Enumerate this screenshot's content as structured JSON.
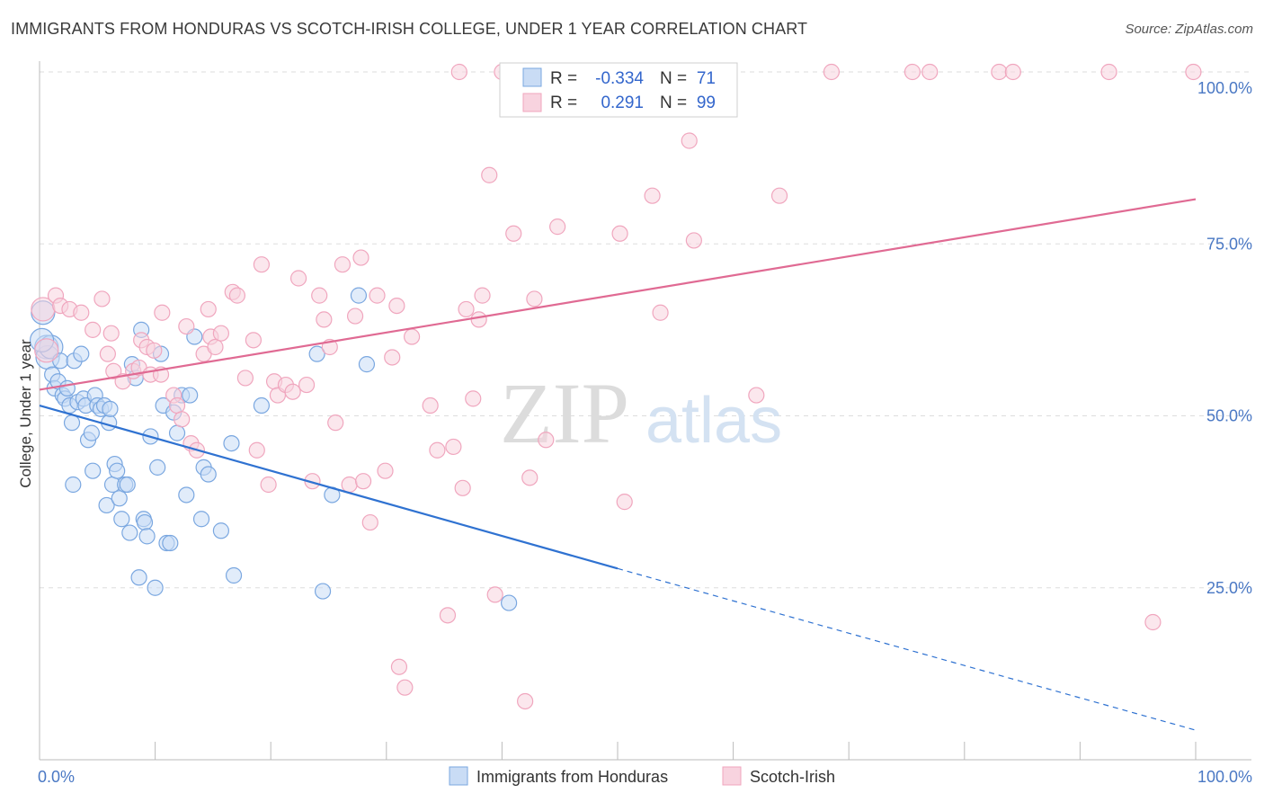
{
  "chart_data": {
    "type": "scatter",
    "title": "IMMIGRANTS FROM HONDURAS VS SCOTCH-IRISH COLLEGE, UNDER 1 YEAR CORRELATION CHART",
    "source": "Source: ZipAtlas.com",
    "xlabel": "",
    "ylabel": "College, Under 1 year",
    "xlim": [
      0,
      100
    ],
    "ylim": [
      0,
      100
    ],
    "x_tick_labels": [
      "0.0%",
      "100.0%"
    ],
    "y_ticks": [
      {
        "value": 25,
        "label": "25.0%"
      },
      {
        "value": 50,
        "label": "50.0%"
      },
      {
        "value": 75,
        "label": "75.0%"
      },
      {
        "value": 100,
        "label": "100.0%"
      }
    ],
    "watermark": {
      "zip": "ZIP",
      "atlas": "atlas"
    },
    "legend": {
      "r_label": "R =",
      "n_label": "N =",
      "entries": [
        {
          "series": "Immigrants from Honduras",
          "r": "-0.334",
          "n": "71"
        },
        {
          "series": "Scotch-Irish",
          "r": "0.291",
          "n": "99"
        }
      ]
    },
    "series": [
      {
        "name": "Immigrants from Honduras",
        "color": "#7aa7e0",
        "fill": "#c9dcf5",
        "line_color": "#2f72d1",
        "trend": {
          "x0": 0,
          "y0": 51.5,
          "x1": 50,
          "y1": 27.8,
          "dash_to_x": 100,
          "dash_to_y": 4.3
        },
        "points": [
          [
            0.3,
            65
          ],
          [
            0.6,
            60
          ],
          [
            0.7,
            58.5
          ],
          [
            1.0,
            60
          ],
          [
            1.1,
            56
          ],
          [
            1.3,
            54
          ],
          [
            1.6,
            55
          ],
          [
            1.8,
            58
          ],
          [
            2.0,
            53
          ],
          [
            2.2,
            52.5
          ],
          [
            2.4,
            54
          ],
          [
            2.6,
            51.5
          ],
          [
            2.8,
            49
          ],
          [
            3.0,
            58
          ],
          [
            3.3,
            52
          ],
          [
            3.6,
            59
          ],
          [
            3.8,
            52.5
          ],
          [
            4.0,
            51.5
          ],
          [
            4.2,
            46.5
          ],
          [
            4.5,
            47.5
          ],
          [
            4.6,
            42
          ],
          [
            4.8,
            53
          ],
          [
            5.0,
            51.5
          ],
          [
            5.3,
            51
          ],
          [
            5.6,
            51.5
          ],
          [
            5.8,
            37
          ],
          [
            6.0,
            49
          ],
          [
            6.1,
            51
          ],
          [
            6.3,
            40
          ],
          [
            6.5,
            43
          ],
          [
            6.7,
            42
          ],
          [
            6.9,
            38
          ],
          [
            7.1,
            35
          ],
          [
            7.4,
            40
          ],
          [
            7.6,
            40
          ],
          [
            7.8,
            33
          ],
          [
            8.0,
            57.5
          ],
          [
            8.3,
            55.5
          ],
          [
            8.6,
            26.5
          ],
          [
            8.8,
            62.5
          ],
          [
            9.0,
            35
          ],
          [
            9.1,
            34.5
          ],
          [
            9.3,
            32.5
          ],
          [
            9.6,
            47
          ],
          [
            10.0,
            25
          ],
          [
            10.2,
            42.5
          ],
          [
            10.5,
            59
          ],
          [
            10.7,
            51.5
          ],
          [
            11.0,
            31.5
          ],
          [
            11.3,
            31.5
          ],
          [
            11.6,
            50.5
          ],
          [
            11.9,
            47.5
          ],
          [
            12.3,
            53
          ],
          [
            12.7,
            38.5
          ],
          [
            13.0,
            53
          ],
          [
            13.4,
            61.5
          ],
          [
            14.0,
            35
          ],
          [
            14.2,
            42.5
          ],
          [
            14.6,
            41.5
          ],
          [
            15.7,
            33.3
          ],
          [
            16.6,
            46
          ],
          [
            16.8,
            26.8
          ],
          [
            19.2,
            51.5
          ],
          [
            24.0,
            59
          ],
          [
            24.5,
            24.5
          ],
          [
            25.3,
            38.5
          ],
          [
            27.6,
            67.5
          ],
          [
            28.3,
            57.5
          ],
          [
            40.6,
            22.8
          ],
          [
            0.2,
            61
          ],
          [
            2.9,
            40
          ]
        ]
      },
      {
        "name": "Scotch-Irish",
        "color": "#f0a6be",
        "fill": "#f8d3df",
        "line_color": "#e06a93",
        "trend": {
          "x0": 0,
          "y0": 53.8,
          "x1": 100,
          "y1": 81.5
        },
        "points": [
          [
            0.3,
            65.5
          ],
          [
            0.6,
            59.5
          ],
          [
            1.4,
            67.5
          ],
          [
            1.8,
            66
          ],
          [
            2.6,
            65.5
          ],
          [
            3.6,
            65
          ],
          [
            4.6,
            62.5
          ],
          [
            5.4,
            67
          ],
          [
            5.9,
            59
          ],
          [
            6.2,
            62
          ],
          [
            6.4,
            56.5
          ],
          [
            7.2,
            55
          ],
          [
            8.1,
            56.5
          ],
          [
            8.6,
            57
          ],
          [
            8.8,
            61
          ],
          [
            9.3,
            60
          ],
          [
            9.6,
            56
          ],
          [
            9.9,
            59.5
          ],
          [
            10.5,
            56
          ],
          [
            10.6,
            65
          ],
          [
            11.6,
            53
          ],
          [
            11.9,
            51.5
          ],
          [
            12.3,
            49.5
          ],
          [
            12.7,
            63
          ],
          [
            13.1,
            46
          ],
          [
            13.6,
            45
          ],
          [
            14.2,
            59
          ],
          [
            14.6,
            65.5
          ],
          [
            14.8,
            61.5
          ],
          [
            15.2,
            60
          ],
          [
            15.7,
            62
          ],
          [
            16.7,
            68
          ],
          [
            17.1,
            67.5
          ],
          [
            17.8,
            55.5
          ],
          [
            18.5,
            61
          ],
          [
            18.8,
            45
          ],
          [
            19.2,
            72
          ],
          [
            19.8,
            40
          ],
          [
            20.3,
            55
          ],
          [
            20.6,
            53
          ],
          [
            21.3,
            54.5
          ],
          [
            21.9,
            53.5
          ],
          [
            22.4,
            70
          ],
          [
            23.1,
            54.5
          ],
          [
            23.6,
            40.5
          ],
          [
            24.2,
            67.5
          ],
          [
            24.6,
            64
          ],
          [
            25.1,
            60
          ],
          [
            25.6,
            49
          ],
          [
            26.2,
            72
          ],
          [
            26.8,
            40
          ],
          [
            27.3,
            64.5
          ],
          [
            27.8,
            73
          ],
          [
            28.0,
            40.5
          ],
          [
            28.6,
            34.5
          ],
          [
            29.2,
            67.5
          ],
          [
            29.9,
            42
          ],
          [
            30.5,
            58.5
          ],
          [
            30.9,
            66
          ],
          [
            31.1,
            13.5
          ],
          [
            31.6,
            10.5
          ],
          [
            32.2,
            61.5
          ],
          [
            33.8,
            51.5
          ],
          [
            34.4,
            45
          ],
          [
            35.3,
            21
          ],
          [
            35.8,
            45.5
          ],
          [
            36.3,
            100
          ],
          [
            36.6,
            39.5
          ],
          [
            36.9,
            65.5
          ],
          [
            37.5,
            52.5
          ],
          [
            38.0,
            64
          ],
          [
            38.3,
            67.5
          ],
          [
            38.9,
            85
          ],
          [
            39.4,
            24
          ],
          [
            40.0,
            100
          ],
          [
            41.0,
            76.5
          ],
          [
            41.5,
            100
          ],
          [
            42.0,
            8.5
          ],
          [
            42.4,
            41
          ],
          [
            42.8,
            67
          ],
          [
            43.8,
            46.5
          ],
          [
            44.8,
            77.5
          ],
          [
            50.2,
            76.5
          ],
          [
            50.6,
            37.5
          ],
          [
            53.0,
            82
          ],
          [
            53.7,
            65
          ],
          [
            56.2,
            90
          ],
          [
            56.6,
            75.5
          ],
          [
            57.0,
            100
          ],
          [
            62.0,
            53
          ],
          [
            64.0,
            82
          ],
          [
            68.5,
            100
          ],
          [
            75.5,
            100
          ],
          [
            77.0,
            100
          ],
          [
            83.0,
            100
          ],
          [
            84.2,
            100
          ],
          [
            92.5,
            100
          ],
          [
            96.3,
            20
          ],
          [
            99.8,
            100
          ]
        ]
      }
    ],
    "bottom_legend": [
      "Immigrants from Honduras",
      "Scotch-Irish"
    ]
  }
}
